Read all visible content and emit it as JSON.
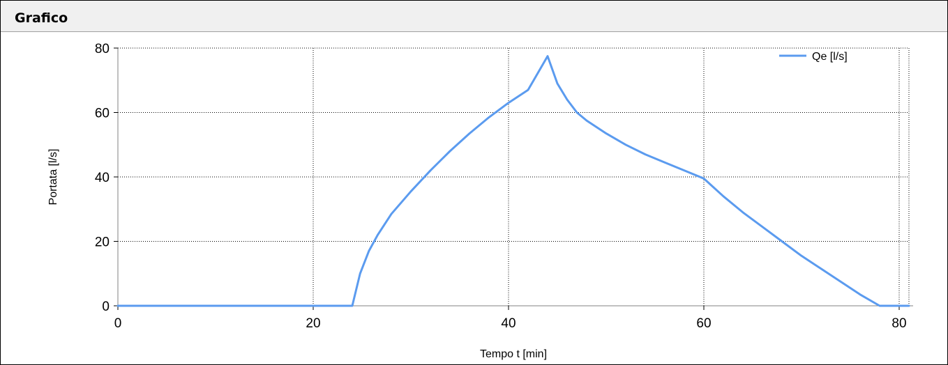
{
  "panel": {
    "title": "Grafico"
  },
  "chart_data": {
    "type": "line",
    "xlabel": "Tempo t [min]",
    "ylabel": "Portata [l/s]",
    "xlim": [
      0,
      81
    ],
    "ylim": [
      0,
      80
    ],
    "x_ticks": [
      "0",
      "20",
      "40",
      "60",
      "80"
    ],
    "y_ticks": [
      "0",
      "20",
      "40",
      "60",
      "80"
    ],
    "grid": true,
    "legend": "top-right",
    "series": [
      {
        "name": "Qe [l/s]",
        "color": "#5b9bef",
        "x": [
          0,
          20,
          24,
          24.8,
          25.7,
          26.6,
          28,
          30,
          32,
          34,
          36,
          38,
          40,
          42,
          44,
          45,
          46,
          47,
          48,
          50,
          52,
          54,
          56,
          58,
          60,
          62,
          64,
          66,
          68,
          70,
          72,
          74,
          76,
          78,
          80,
          81
        ],
        "values": [
          0,
          0,
          0,
          10,
          17,
          22,
          28.5,
          35.5,
          42,
          48,
          53.5,
          58.5,
          63,
          67,
          77.5,
          69,
          64,
          60,
          57.5,
          53.5,
          50,
          47,
          44.5,
          42,
          39.5,
          34,
          29,
          24.5,
          20,
          15.5,
          11.5,
          7.5,
          3.5,
          0,
          0,
          0
        ]
      }
    ]
  }
}
